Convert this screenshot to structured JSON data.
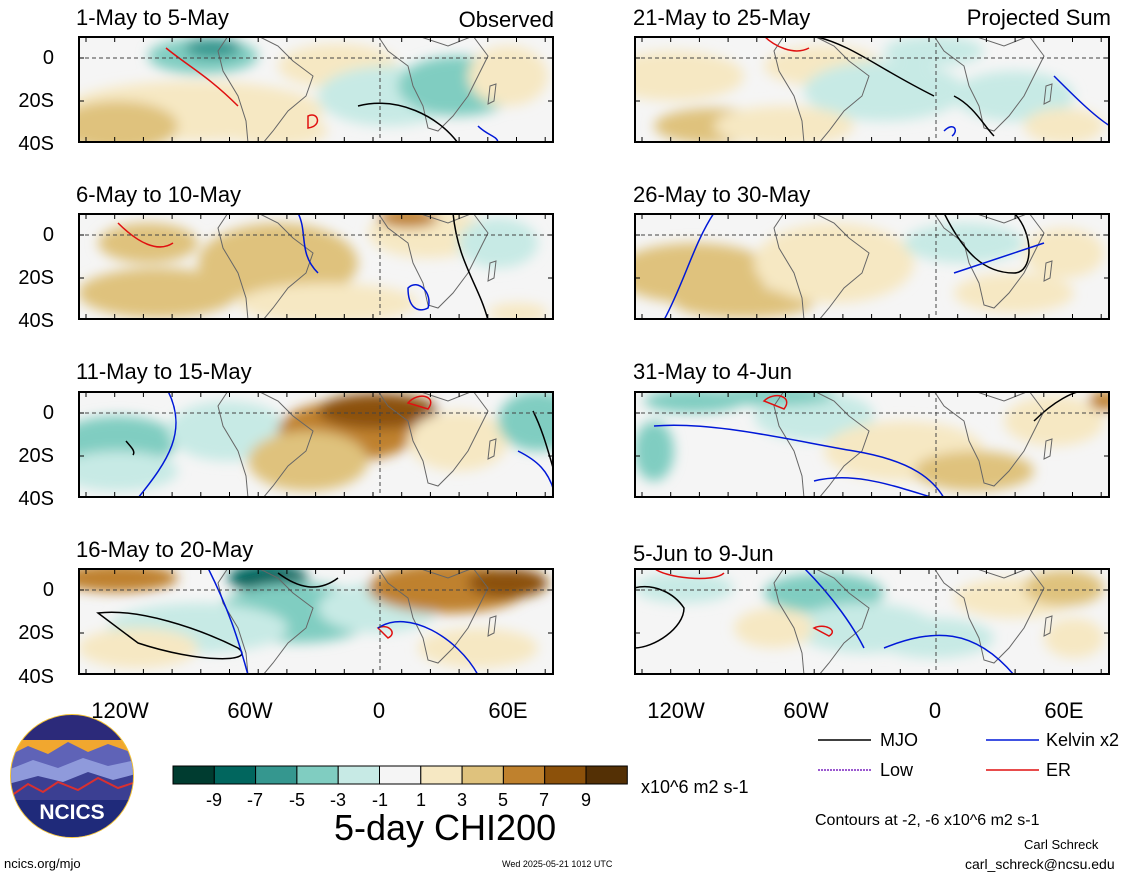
{
  "panels": [
    {
      "title": "1-May to 5-May",
      "label": "Observed"
    },
    {
      "title": "6-May to 10-May",
      "label": ""
    },
    {
      "title": "11-May to 15-May",
      "label": ""
    },
    {
      "title": "16-May to 20-May",
      "label": ""
    },
    {
      "title": "21-May to 25-May",
      "label": "Projected Sum"
    },
    {
      "title": "26-May to 30-May",
      "label": ""
    },
    {
      "title": "31-May to 4-Jun",
      "label": ""
    },
    {
      "title": "5-Jun to 9-Jun",
      "label": ""
    }
  ],
  "lat_labels": [
    "0",
    "20S",
    "40S"
  ],
  "lon_labels": [
    "120W",
    "60W",
    "0",
    "60E"
  ],
  "legend": {
    "mjo": "MJO",
    "kelvin": "Kelvin x2",
    "low": "Low",
    "er": "ER",
    "contours_note": "Contours at -2, -6 x10^6 m2 s-1"
  },
  "colorbar": {
    "ticks": [
      "-9",
      "-7",
      "-5",
      "-3",
      "-1",
      "1",
      "3",
      "5",
      "7",
      "9"
    ],
    "units": "x10^6 m2 s-1",
    "title": "5-day CHI200",
    "colors": [
      "#003c30",
      "#01665e",
      "#35978f",
      "#80cdc1",
      "#c7eae5",
      "#f5f5f5",
      "#f6e8c3",
      "#dfc27d",
      "#bf812d",
      "#8c510a",
      "#543005"
    ]
  },
  "footer": {
    "url": "ncics.org/mjo",
    "timestamp": "Wed 2025-05-21 1012 UTC",
    "author": "Carl Schreck",
    "email": "carl_schreck@ncsu.edu",
    "logo_text": "NCICS"
  }
}
